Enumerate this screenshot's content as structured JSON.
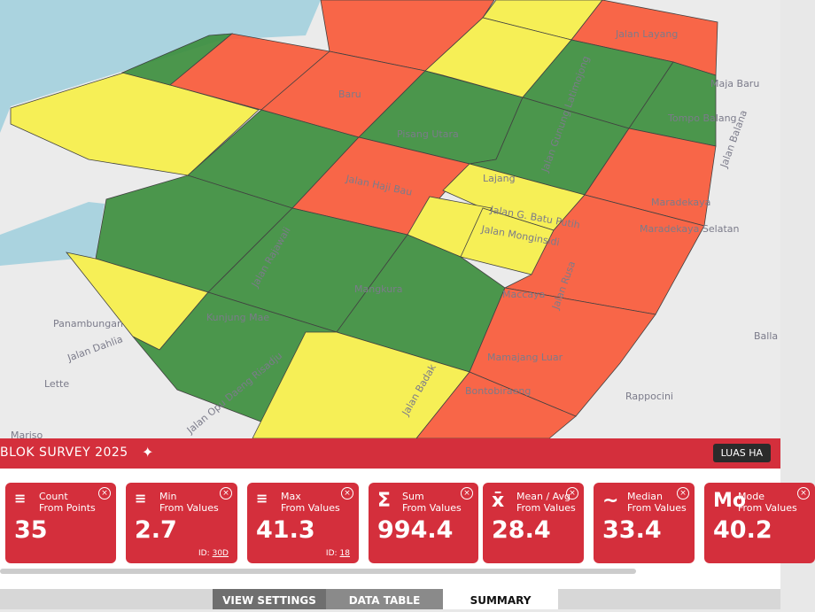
{
  "map": {
    "labels": [
      "Jalan Layang",
      "Baru",
      "Pisang Utara",
      "Lajang",
      "Jalan Haji Bau",
      "Jalan G. Batu Putih",
      "Jalan Monginsidi",
      "Maradekaya",
      "Maradekaya Selatan",
      "Mangkura",
      "Jalan Rajawali",
      "Kunjung Mae",
      "Panambungan",
      "Jalan Dahlia",
      "Lette",
      "Mariso",
      "Jalan Opu Daeng Risadju",
      "Maccaya",
      "Jalan Rusa",
      "Mamajang Luar",
      "Bontobiraeng",
      "Rappocini",
      "Maja Baru",
      "Tompo Balang",
      "Jalan Balana",
      "Balla",
      "Jalan Gunung Latimojong",
      "Jalan Badak"
    ]
  },
  "panel": {
    "title": "BLOK SURVEY 2025",
    "button": "LUAS HA",
    "cards": [
      {
        "icon": "",
        "title": "Count",
        "subtitle": "From Points",
        "value": "35"
      },
      {
        "icon": "",
        "title": "Min",
        "subtitle": "From Values",
        "value": "2.7",
        "id_label": "ID:",
        "id": "30D"
      },
      {
        "icon": "",
        "title": "Max",
        "subtitle": "From Values",
        "value": "41.3",
        "id_label": "ID:",
        "id": "18"
      },
      {
        "icon": "Σ",
        "title": "Sum",
        "subtitle": "From Values",
        "value": "994.4"
      },
      {
        "icon": "x̄",
        "title": "Mean / Avg",
        "subtitle": "From Values",
        "value": "28.4"
      },
      {
        "icon": "~",
        "title": "Median",
        "subtitle": "From Values",
        "value": "33.4"
      },
      {
        "icon": "Mo",
        "title": "Mode",
        "subtitle": "From Values",
        "value": "40.2"
      }
    ]
  },
  "tabs": [
    "VIEW SETTINGS",
    "DATA TABLE",
    "SUMMARY"
  ]
}
